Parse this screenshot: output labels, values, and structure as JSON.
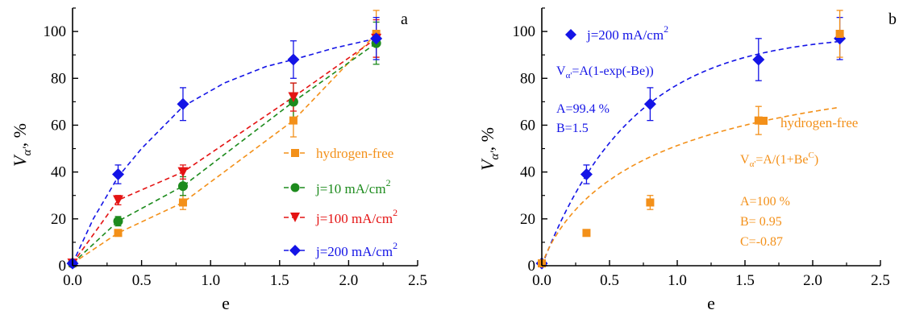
{
  "colors": {
    "hydrogen_free": "#f39019",
    "j10": "#1d8b1d",
    "j100": "#e41414",
    "j200": "#1414e6",
    "axis": "#000000"
  },
  "chart_data": [
    {
      "type": "scatter",
      "panel_label": "a",
      "xlabel": "e",
      "ylabel": {
        "main": "V",
        "sub": "α'",
        "suffix": ", %"
      },
      "xlim": [
        0,
        2.5
      ],
      "ylim": [
        0,
        110
      ],
      "xticks": [
        0.0,
        0.5,
        1.0,
        1.5,
        2.0,
        2.5
      ],
      "xtick_labels": [
        "0.0",
        "0.5",
        "1.0",
        "1.5",
        "2.0",
        "2.5"
      ],
      "yticks": [
        0,
        20,
        40,
        60,
        80,
        100
      ],
      "ytick_labels": [
        "0",
        "20",
        "40",
        "60",
        "80",
        "100"
      ],
      "grid": false,
      "legend_position": "bottom-right",
      "series": [
        {
          "key": "hydrogen_free",
          "name": "hydrogen-free",
          "marker": "square",
          "x": [
            0.0,
            0.33,
            0.8,
            1.6,
            2.2
          ],
          "y": [
            1,
            14,
            27,
            62,
            99
          ],
          "err": [
            0,
            0,
            3,
            7,
            10
          ],
          "curve": {
            "x": [
              0.0,
              0.33,
              0.8,
              1.6,
              2.2
            ],
            "y": [
              1,
              14,
              27,
              62,
              99
            ]
          }
        },
        {
          "key": "j10",
          "name": "j=10 mA/cm",
          "name_sup": "2",
          "marker": "circle",
          "x": [
            0.0,
            0.33,
            0.8,
            1.6,
            2.2
          ],
          "y": [
            1,
            19,
            34,
            70,
            95
          ],
          "err": [
            0,
            2,
            4,
            8,
            9
          ],
          "curve": {
            "x": [
              0.0,
              0.33,
              0.8,
              1.6,
              2.2
            ],
            "y": [
              1,
              19,
              34,
              70,
              95
            ]
          }
        },
        {
          "key": "j100",
          "name": "j=100 mA/cm",
          "name_sup": "2",
          "marker": "triangle-down",
          "x": [
            0.0,
            0.33,
            0.8,
            1.6,
            2.2
          ],
          "y": [
            1,
            28,
            40,
            72,
            97
          ],
          "err": [
            0,
            2,
            3,
            6,
            8
          ],
          "curve": {
            "x": [
              0.0,
              0.33,
              0.8,
              1.6,
              2.2
            ],
            "y": [
              1,
              28,
              40,
              72,
              97
            ]
          }
        },
        {
          "key": "j200",
          "name": "j=200 mA/cm",
          "name_sup": "2",
          "marker": "diamond",
          "x": [
            0.0,
            0.33,
            0.8,
            1.6,
            2.2
          ],
          "y": [
            1,
            39,
            69,
            88,
            97
          ],
          "err": [
            0,
            4,
            7,
            8,
            9
          ],
          "curve": {
            "x": [
              0.0,
              0.15,
              0.33,
              0.5,
              0.8,
              1.1,
              1.4,
              1.6,
              1.9,
              2.2
            ],
            "y": [
              1,
              20,
              38,
              50,
              68,
              78,
              85,
              88,
              93,
              97
            ]
          }
        }
      ]
    },
    {
      "type": "scatter",
      "panel_label": "b",
      "xlabel": "e",
      "ylabel": {
        "main": "V",
        "sub": "α'",
        "suffix": ", %"
      },
      "xlim": [
        0,
        2.5
      ],
      "ylim": [
        0,
        110
      ],
      "xticks": [
        0.0,
        0.5,
        1.0,
        1.5,
        2.0,
        2.5
      ],
      "xtick_labels": [
        "0.0",
        "0.5",
        "1.0",
        "1.5",
        "2.0",
        "2.5"
      ],
      "yticks": [
        0,
        20,
        40,
        60,
        80,
        100
      ],
      "ytick_labels": [
        "0",
        "20",
        "40",
        "60",
        "80",
        "100"
      ],
      "grid": false,
      "series": [
        {
          "key": "j200",
          "name": "j=200 mA/cm",
          "name_sup": "2",
          "marker": "diamond",
          "x": [
            0.0,
            0.33,
            0.8,
            1.6,
            2.2
          ],
          "y": [
            1,
            39,
            69,
            88,
            97
          ],
          "err": [
            0,
            4,
            7,
            9,
            9
          ],
          "fit": {
            "formula": "A(1-exp(-Be))",
            "A": 99.4,
            "B": 1.5
          }
        },
        {
          "key": "hydrogen_free",
          "name": "hydrogen-free",
          "marker": "square",
          "x": [
            0.0,
            0.33,
            0.8,
            1.6,
            2.2
          ],
          "y": [
            1,
            14,
            27,
            62,
            99
          ],
          "err": [
            0,
            0,
            3,
            6,
            10
          ],
          "fit": {
            "formula": "A/(1+Be^C)",
            "A": 100,
            "B": 0.95,
            "C": -0.87
          }
        }
      ],
      "annotations": {
        "formula1": {
          "pre": "V",
          "sub": "α'",
          "post": "=A(1-exp(-Be))"
        },
        "params1": [
          "A=99.4 %",
          "B=1.5"
        ],
        "formula2": {
          "pre": "V",
          "sub": "α'",
          "mid": "=A/(1+Be",
          "sup": "C",
          "post": ")"
        },
        "params2": [
          "A=100 %",
          "B= 0.95",
          "C=-0.87"
        ]
      }
    }
  ]
}
